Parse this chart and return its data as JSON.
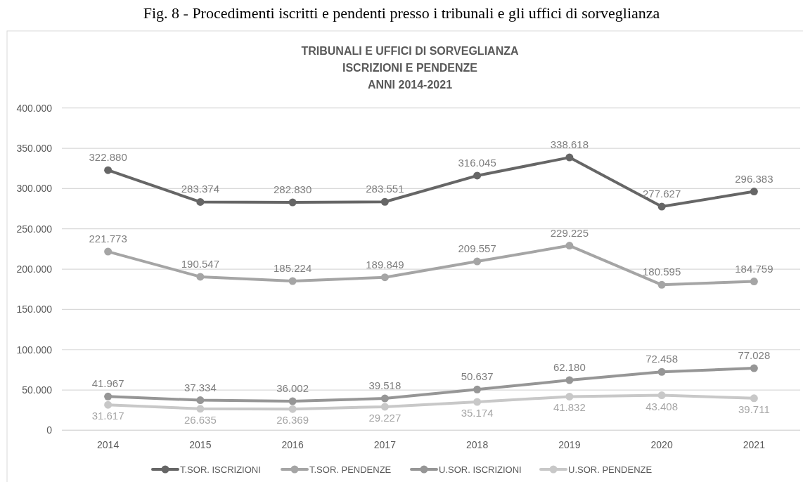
{
  "chart_data": {
    "type": "line",
    "title": "Fig. 8 - Procedimenti iscritti e pendenti presso i tribunali e gli uffici di sorveglianza",
    "subtitle": "TRIBUNALI E UFFICI DI SORVEGLIANZA\nISCRIZIONI E PENDENZE\nANNI 2014-2021",
    "categories": [
      "2014",
      "2015",
      "2016",
      "2017",
      "2018",
      "2019",
      "2020",
      "2021"
    ],
    "series": [
      {
        "name": "T.SOR. ISCRIZIONI",
        "color": "#666666",
        "values": [
          322880,
          283374,
          282830,
          283551,
          316045,
          338618,
          277627,
          296383
        ],
        "value_labels": [
          "322.880",
          "283.374",
          "282.830",
          "283.551",
          "316.045",
          "338.618",
          "277.627",
          "296.383"
        ]
      },
      {
        "name": "T.SOR. PENDENZE",
        "color": "#a5a5a5",
        "values": [
          221773,
          190547,
          185224,
          189849,
          209557,
          229225,
          180595,
          184759
        ],
        "value_labels": [
          "221.773",
          "190.547",
          "185.224",
          "189.849",
          "209.557",
          "229.225",
          "180.595",
          "184.759"
        ]
      },
      {
        "name": "U.SOR. ISCRIZIONI",
        "color": "#969696",
        "values": [
          41967,
          37334,
          36002,
          39518,
          50637,
          62180,
          72458,
          77028
        ],
        "value_labels": [
          "41.967",
          "37.334",
          "36.002",
          "39.518",
          "50.637",
          "62.180",
          "72.458",
          "77.028"
        ]
      },
      {
        "name": "U.SOR. PENDENZE",
        "color": "#c8c8c8",
        "values": [
          31617,
          26635,
          26369,
          29227,
          35174,
          41832,
          43408,
          39711
        ],
        "value_labels": [
          "31.617",
          "26.635",
          "26.369",
          "29.227",
          "35.174",
          "41.832",
          "43.408",
          "39.711"
        ]
      }
    ],
    "ylim": [
      0,
      400000
    ],
    "yticks": [
      0,
      {
        "value": 50000,
        "label": "50.000"
      },
      {
        "value": 100000,
        "label": "100.000"
      },
      {
        "value": 150000,
        "label": "150.000"
      },
      {
        "value": 200000,
        "label": "200.000"
      },
      {
        "value": 250000,
        "label": "250.000"
      },
      {
        "value": 300000,
        "label": "300.000"
      },
      {
        "value": 350000,
        "label": "350.000"
      },
      {
        "value": 400000,
        "label": "400.000"
      }
    ],
    "grid": "y",
    "legend": "bottom",
    "marker": "circle"
  }
}
